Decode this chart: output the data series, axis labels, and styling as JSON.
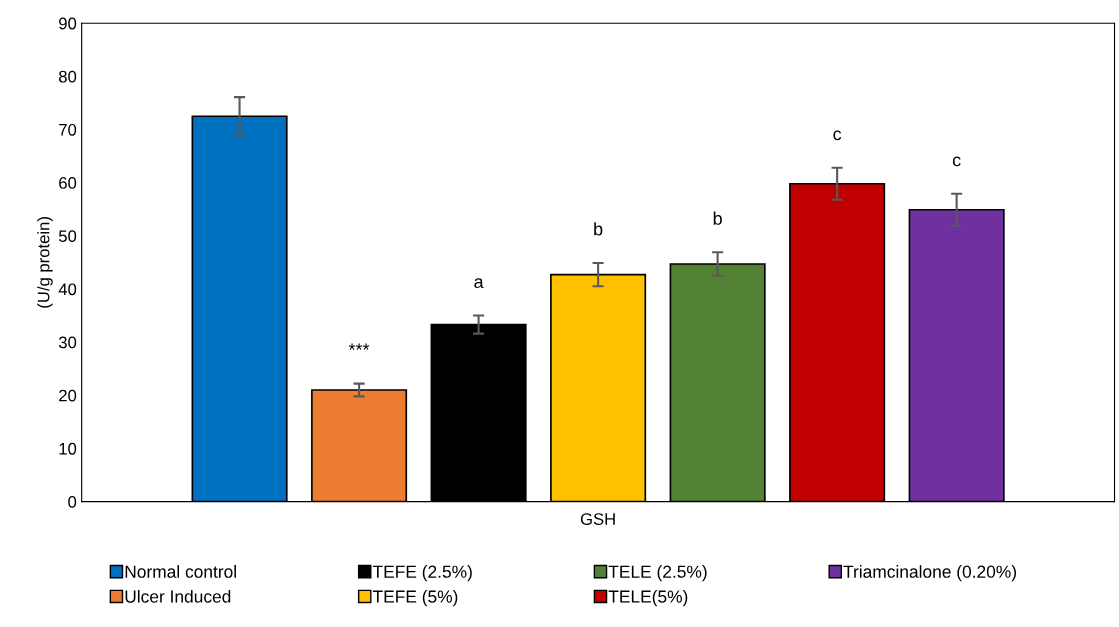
{
  "chart_data": {
    "type": "bar",
    "ylabel": "(U/g protein)",
    "categories": [
      "GSH"
    ],
    "ylim": [
      0,
      90
    ],
    "yticks": [
      0,
      10,
      20,
      30,
      40,
      50,
      60,
      70,
      80,
      90
    ],
    "grid": false,
    "legend": "bottom",
    "series": [
      {
        "name": "Normal control",
        "color": "#0070c0",
        "values": [
          72.5
        ],
        "errors": [
          3.6
        ]
      },
      {
        "name": "Ulcer Induced",
        "color": "#ed7d31",
        "values": [
          21.0
        ],
        "errors": [
          1.2
        ],
        "value_labels": [
          "***"
        ]
      },
      {
        "name": "TEFE (2.5%)",
        "color": "#000000",
        "values": [
          33.3
        ],
        "errors": [
          1.7
        ],
        "value_labels": [
          "a"
        ]
      },
      {
        "name": "TEFE (5%)",
        "color": "#ffc000",
        "values": [
          42.7
        ],
        "errors": [
          2.2
        ],
        "value_labels": [
          "b"
        ]
      },
      {
        "name": "TELE (2.5%)",
        "color": "#548235",
        "values": [
          44.7
        ],
        "errors": [
          2.2
        ],
        "value_labels": [
          "b"
        ]
      },
      {
        "name": "TELE(5%)",
        "color": "#c00000",
        "values": [
          59.8
        ],
        "errors": [
          3.0
        ],
        "value_labels": [
          "c"
        ]
      },
      {
        "name": "Triamcinalone (0.20%)",
        "color": "#7030a0",
        "values": [
          54.9
        ],
        "errors": [
          3.0
        ],
        "value_labels": [
          "c"
        ]
      }
    ]
  }
}
